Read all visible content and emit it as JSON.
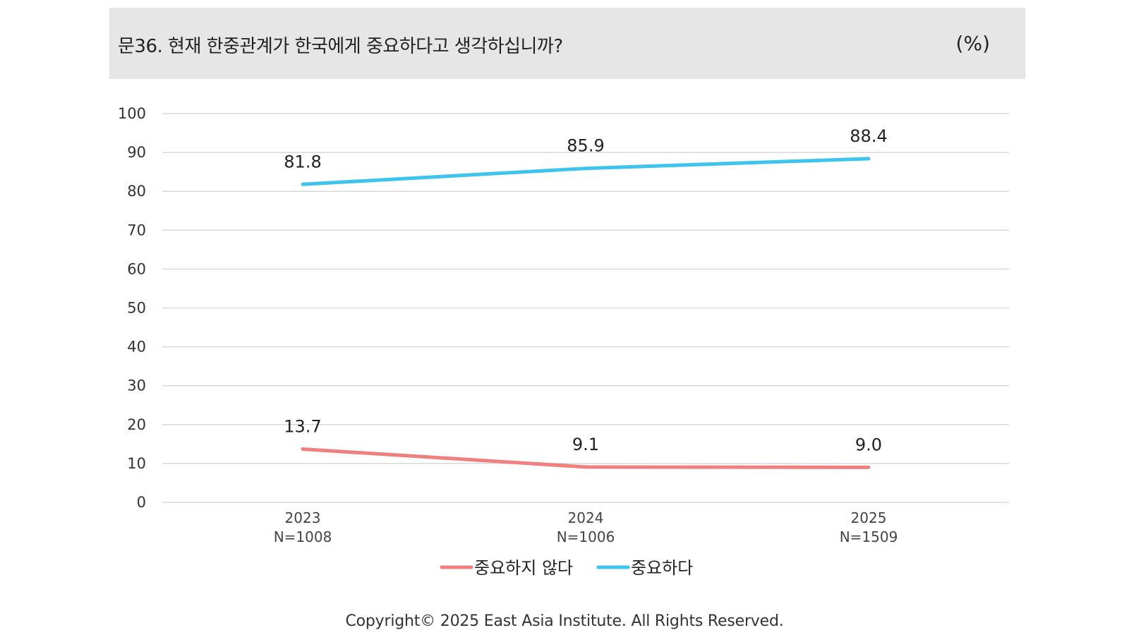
{
  "header": {
    "title": "문36. 현재 한중관계가 한국에게 중요하다고 생각하십니까?",
    "unit": "(%)"
  },
  "chart_data": {
    "type": "line",
    "categories": [
      "2023",
      "2024",
      "2025"
    ],
    "category_sublabels": [
      "N=1008",
      "N=1006",
      "N=1509"
    ],
    "series": [
      {
        "name": "중요하지 않다",
        "values": [
          13.7,
          9.1,
          9.0
        ],
        "color": "#f08080"
      },
      {
        "name": "중요하다",
        "values": [
          81.8,
          85.9,
          88.4
        ],
        "color": "#3cc4ef"
      }
    ],
    "ylim": [
      0,
      100
    ],
    "yticks": [
      0,
      10,
      20,
      30,
      40,
      50,
      60,
      70,
      80,
      90,
      100
    ],
    "ytick_labels": [
      "0",
      "10",
      "20",
      "30",
      "40",
      "50",
      "60",
      "70",
      "80",
      "90",
      "100"
    ],
    "data_labels": [
      [
        "13.7",
        "9.1",
        "9.0"
      ],
      [
        "81.8",
        "85.9",
        "88.4"
      ]
    ],
    "grid": true,
    "gridline_color": "#d9d9d9",
    "legend_position": "bottom-center"
  },
  "footer": {
    "copyright": "Copyright© 2025 East Asia Institute. All Rights Reserved."
  }
}
